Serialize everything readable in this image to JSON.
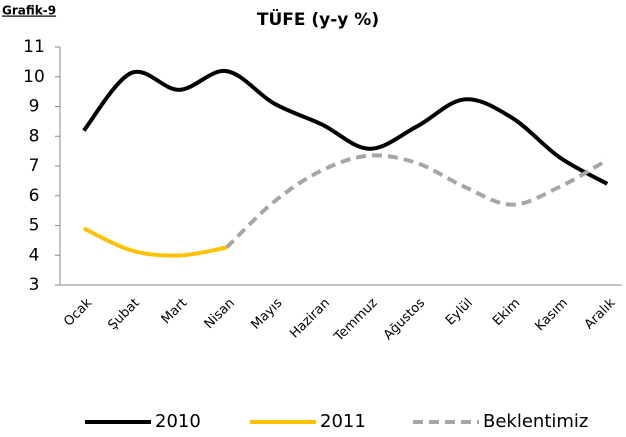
{
  "chart_data": {
    "type": "line",
    "figure_label": "Grafik-9",
    "title": "TÜFE (y-y %)",
    "categories": [
      "Ocak",
      "Şubat",
      "Mart",
      "Nisan",
      "Mayıs",
      "Haziran",
      "Temmuz",
      "Ağustos",
      "Eylül",
      "Ekim",
      "Kasım",
      "Aralık"
    ],
    "series": [
      {
        "name": "2010",
        "color": "#000000",
        "dash": false,
        "values": [
          8.19,
          10.13,
          9.56,
          10.19,
          9.1,
          8.4,
          7.58,
          8.33,
          9.24,
          8.62,
          7.29,
          6.4
        ]
      },
      {
        "name": "2011",
        "color": "#ffc000",
        "dash": false,
        "values": [
          4.9,
          4.16,
          3.99,
          4.26,
          null,
          null,
          null,
          null,
          null,
          null,
          null,
          null
        ]
      },
      {
        "name": "Beklentimiz",
        "color": "#a6a6a6",
        "dash": true,
        "values": [
          null,
          null,
          null,
          4.26,
          5.8,
          6.85,
          7.35,
          7.1,
          6.3,
          5.7,
          6.3,
          7.2
        ]
      }
    ],
    "ylim": [
      3,
      11
    ],
    "yticks": [
      3,
      4,
      5,
      6,
      7,
      8,
      9,
      10,
      11
    ],
    "grid": false
  }
}
